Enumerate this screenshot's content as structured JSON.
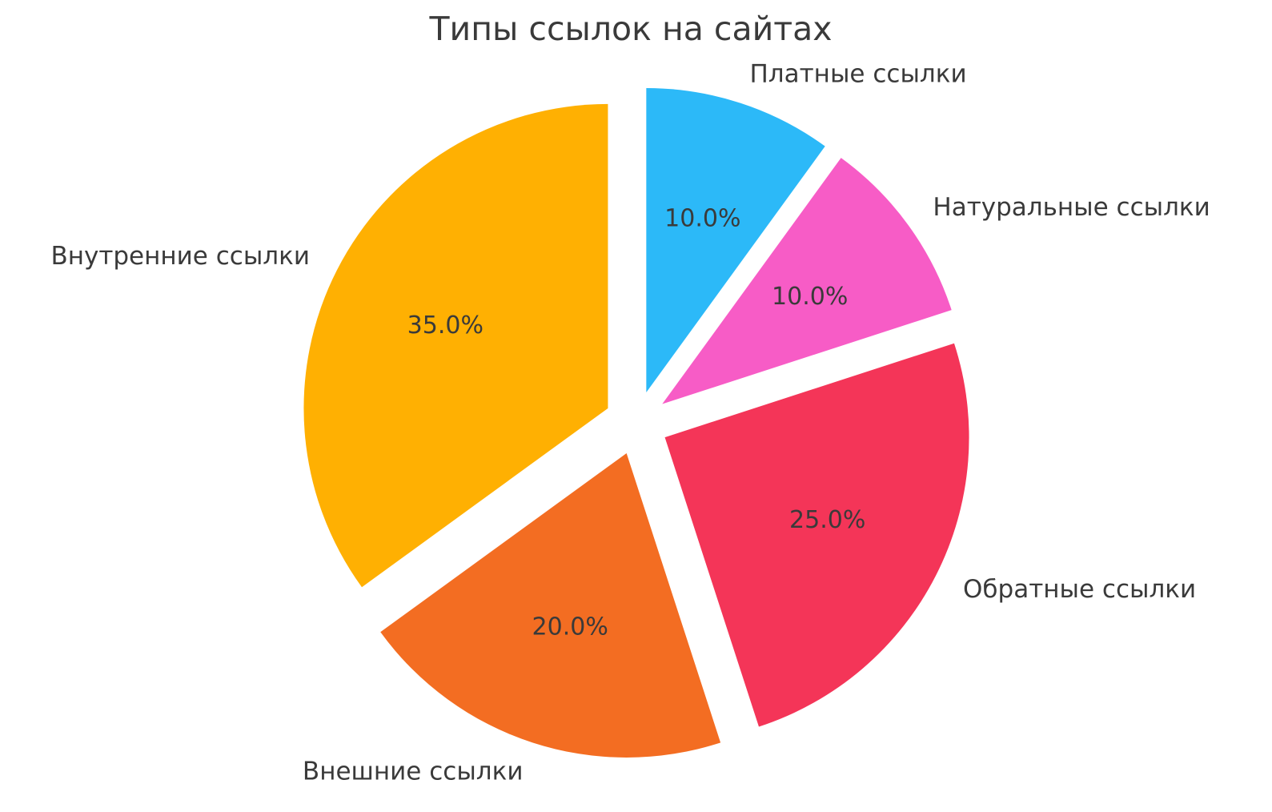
{
  "chart_data": {
    "type": "pie",
    "title": "Типы ссылок на сайтах",
    "legend": "none",
    "grid": "off",
    "background_color": "#FFFFFF",
    "text_color": "#3A3A3A",
    "start_angle_deg": 90,
    "direction": "clockwise",
    "explode": 0.105,
    "label_distance": 1.1,
    "pct_distance": 0.6,
    "slices": [
      {
        "label": "Платные ссылки",
        "value": 10.0,
        "pct_label": "10.0%",
        "color": "#2CB9F8"
      },
      {
        "label": "Натуральные ссылки",
        "value": 10.0,
        "pct_label": "10.0%",
        "color": "#F75CC6"
      },
      {
        "label": "Обратные ссылки",
        "value": 25.0,
        "pct_label": "25.0%",
        "color": "#F43558"
      },
      {
        "label": "Внешние ссылки",
        "value": 20.0,
        "pct_label": "20.0%",
        "color": "#F36D22"
      },
      {
        "label": "Внутренние ссылки",
        "value": 35.0,
        "pct_label": "35.0%",
        "color": "#FFB002"
      }
    ]
  }
}
